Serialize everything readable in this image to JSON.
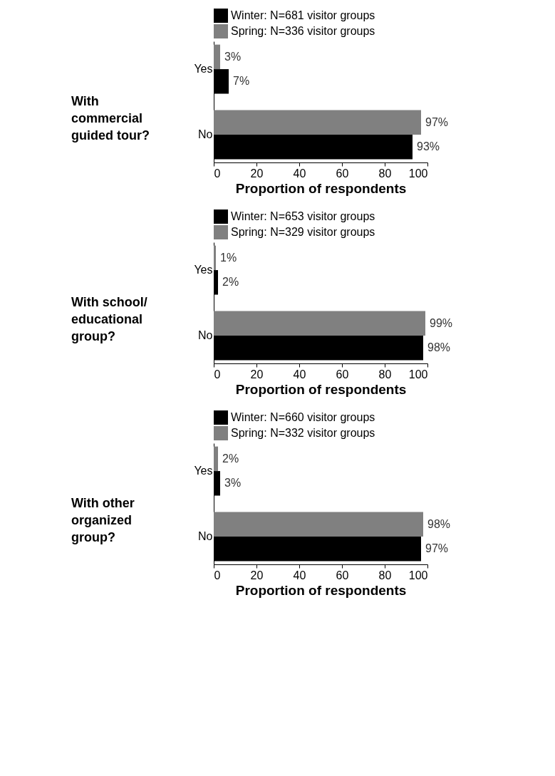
{
  "chart_data": [
    {
      "type": "bar",
      "orientation": "horizontal",
      "title": "With commercial guided tour?",
      "xlabel": "Proportion of respondents",
      "categories": [
        "Yes",
        "No"
      ],
      "xlim": [
        0,
        100
      ],
      "xticks": [
        0,
        20,
        40,
        60,
        80,
        100
      ],
      "grid": false,
      "legend": "top",
      "series": [
        {
          "name": "Winter: N=681 visitor groups",
          "color": "#000000",
          "values": [
            7,
            93
          ],
          "value_labels": [
            "7%",
            "93%"
          ]
        },
        {
          "name": "Spring: N=336 visitor groups",
          "color": "#808080",
          "values": [
            3,
            97
          ],
          "value_labels": [
            "3%",
            "97%"
          ]
        }
      ]
    },
    {
      "type": "bar",
      "orientation": "horizontal",
      "title": "With school/ educational group?",
      "xlabel": "Proportion of respondents",
      "categories": [
        "Yes",
        "No"
      ],
      "xlim": [
        0,
        100
      ],
      "xticks": [
        0,
        20,
        40,
        60,
        80,
        100
      ],
      "grid": false,
      "legend": "top",
      "series": [
        {
          "name": "Winter: N=653 visitor groups",
          "color": "#000000",
          "values": [
            2,
            98
          ],
          "value_labels": [
            "2%",
            "98%"
          ]
        },
        {
          "name": "Spring: N=329 visitor groups",
          "color": "#808080",
          "values": [
            1,
            99
          ],
          "value_labels": [
            "1%",
            "99%"
          ]
        }
      ]
    },
    {
      "type": "bar",
      "orientation": "horizontal",
      "title": "With other organized group?",
      "xlabel": "Proportion of respondents",
      "categories": [
        "Yes",
        "No"
      ],
      "xlim": [
        0,
        100
      ],
      "xticks": [
        0,
        20,
        40,
        60,
        80,
        100
      ],
      "grid": false,
      "legend": "top",
      "series": [
        {
          "name": "Winter: N=660 visitor groups",
          "color": "#000000",
          "values": [
            3,
            97
          ],
          "value_labels": [
            "3%",
            "97%"
          ]
        },
        {
          "name": "Spring: N=332 visitor groups",
          "color": "#808080",
          "values": [
            2,
            98
          ],
          "value_labels": [
            "2%",
            "98%"
          ]
        }
      ]
    }
  ]
}
